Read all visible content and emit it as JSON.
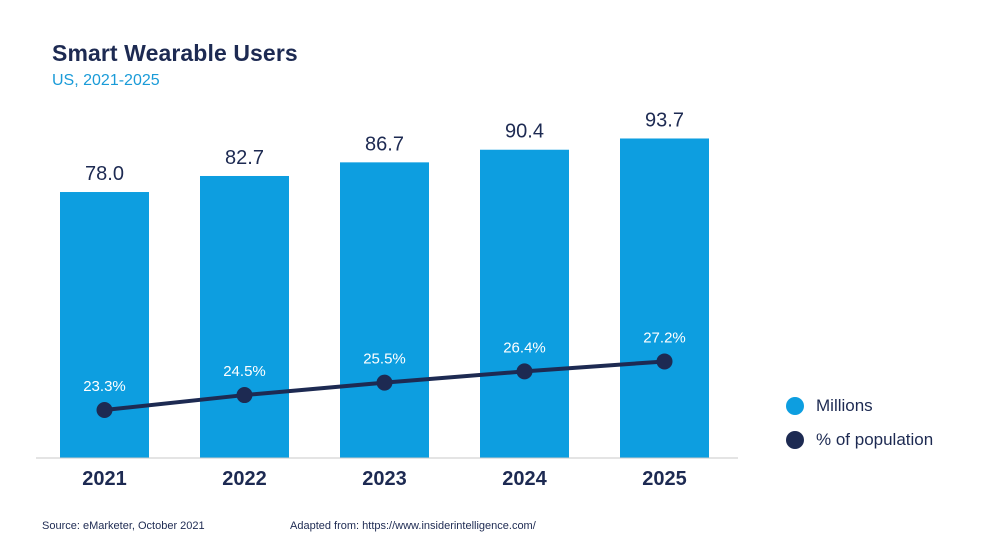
{
  "title": "Smart Wearable Users",
  "subtitle": "US, 2021-2025",
  "colors": {
    "bar": "#0d9ee0",
    "line": "#1d2a52",
    "value_text": "#1d2a52",
    "title": "#1d2a52",
    "subtitle": "#1a9bd8"
  },
  "chart_data": {
    "type": "bar",
    "categories": [
      "2021",
      "2022",
      "2023",
      "2024",
      "2025"
    ],
    "series": [
      {
        "name": "Millions",
        "type": "bar",
        "values": [
          78.0,
          82.7,
          86.7,
          90.4,
          93.7
        ],
        "labels": [
          "78.0",
          "82.7",
          "86.7",
          "90.4",
          "93.7"
        ]
      },
      {
        "name": "% of population",
        "type": "line",
        "values": [
          23.3,
          24.5,
          25.5,
          26.4,
          27.2
        ],
        "labels": [
          "23.3%",
          "24.5%",
          "25.5%",
          "26.4%",
          "27.2%"
        ]
      }
    ],
    "grid": false,
    "legend_position": "right"
  },
  "legend": [
    {
      "label": "Millions",
      "color": "#0d9ee0"
    },
    {
      "label": "% of population",
      "color": "#1d2a52"
    }
  ],
  "footer": {
    "source": "Source: eMarketer, October 2021",
    "adapted": "Adapted from: https://www.insiderintelligence.com/"
  }
}
